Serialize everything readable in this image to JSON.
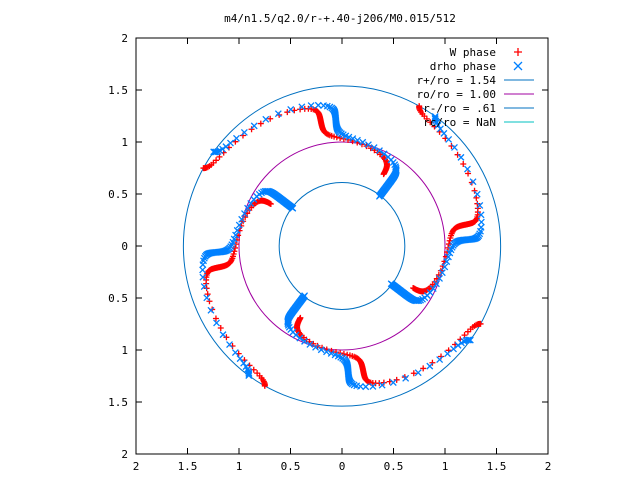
{
  "chart_data": {
    "type": "scatter",
    "title": "m4/n1.5/q2.0/r-+.40-j206/M0.015/512",
    "xlim": [
      -2,
      2
    ],
    "ylim": [
      -2,
      2
    ],
    "x_ticks": [
      -2,
      -1.5,
      -1,
      -0.5,
      0,
      0.5,
      1,
      1.5,
      2
    ],
    "y_ticks": [
      -2,
      -1.5,
      -1,
      -0.5,
      0,
      0.5,
      1,
      1.5,
      2
    ],
    "x_tick_labels": [
      "2",
      "1.5",
      "1",
      "0.5",
      "0",
      "0.5",
      "1",
      "1.5",
      "2"
    ],
    "y_tick_labels": [
      "2",
      "1.5",
      "1",
      "0.5",
      "0",
      "0.5",
      "1",
      "1.5",
      "2"
    ],
    "grid": false,
    "legend_position": "top-right",
    "series": [
      {
        "name": "W phase",
        "kind": "points",
        "marker": "plus",
        "color": "#ff0000",
        "mode": 4,
        "data_source": "spiral pattern (4 arms) sampled along r",
        "r_range": [
          0.8,
          1.54
        ]
      },
      {
        "name": "drho phase",
        "kind": "points",
        "marker": "cross",
        "color": "#0080ff",
        "mode": 4,
        "data_source": "spiral pattern (4 arms) sampled along r",
        "r_range": [
          0.6,
          1.54
        ]
      },
      {
        "name": "r+/ro = 1.54",
        "kind": "circle",
        "radius": 1.54,
        "color": "#0070c0"
      },
      {
        "name": "ro/ro = 1.00",
        "kind": "circle",
        "radius": 1.0,
        "color": "#a000a0"
      },
      {
        "name": "r-/ro = .61",
        "kind": "circle",
        "radius": 0.61,
        "color": "#0070c0"
      },
      {
        "name": "rc/ro = NaN",
        "kind": "circle",
        "radius": null,
        "color": "#00c0c0"
      }
    ]
  }
}
